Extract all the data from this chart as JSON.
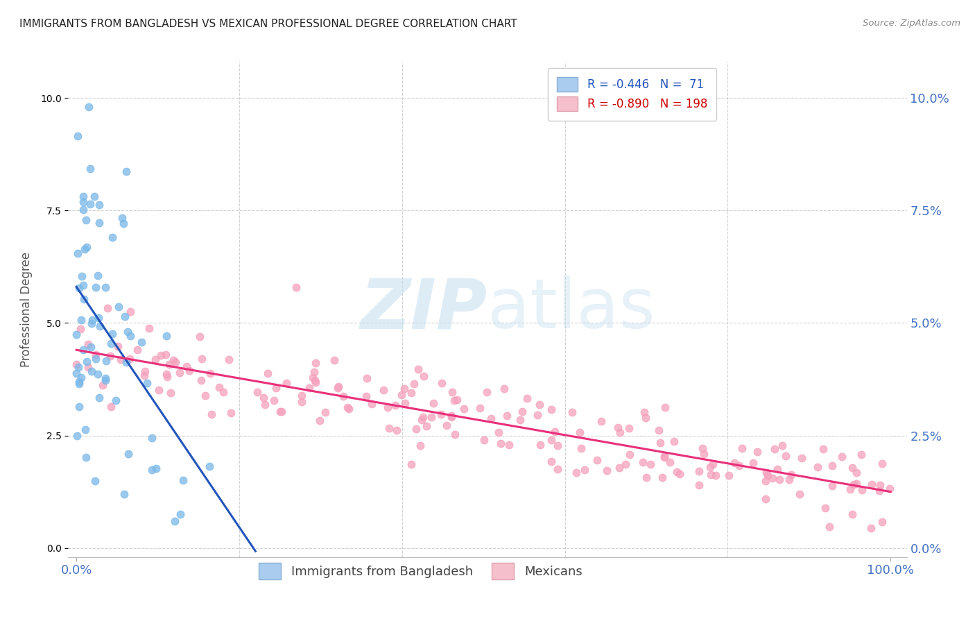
{
  "title": "IMMIGRANTS FROM BANGLADESH VS MEXICAN PROFESSIONAL DEGREE CORRELATION CHART",
  "source": "Source: ZipAtlas.com",
  "ylabel": "Professional Degree",
  "R_bangladesh": -0.446,
  "N_bangladesh": 71,
  "R_mexican": -0.89,
  "N_mexican": 198,
  "scatter_color_bangladesh": "#7ab8e8",
  "scatter_color_mexican": "#f5a0bc",
  "line_color_bangladesh": "#2255bb",
  "line_color_mexican": "#e8307a",
  "background_color": "#ffffff",
  "grid_color": "#cccccc",
  "watermark_text": "ZIPatlas",
  "watermark_color": "#cce5f5",
  "seed": 99,
  "legend_patch_blue": "#aaccee",
  "legend_patch_pink": "#f5c0cc",
  "legend_text_color": "#2255bb",
  "legend_r_color_blue": "#2255bb",
  "legend_r_color_pink": "#cc0000",
  "xmin": 0,
  "xmax": 100,
  "ymin": 0,
  "ymax": 10
}
